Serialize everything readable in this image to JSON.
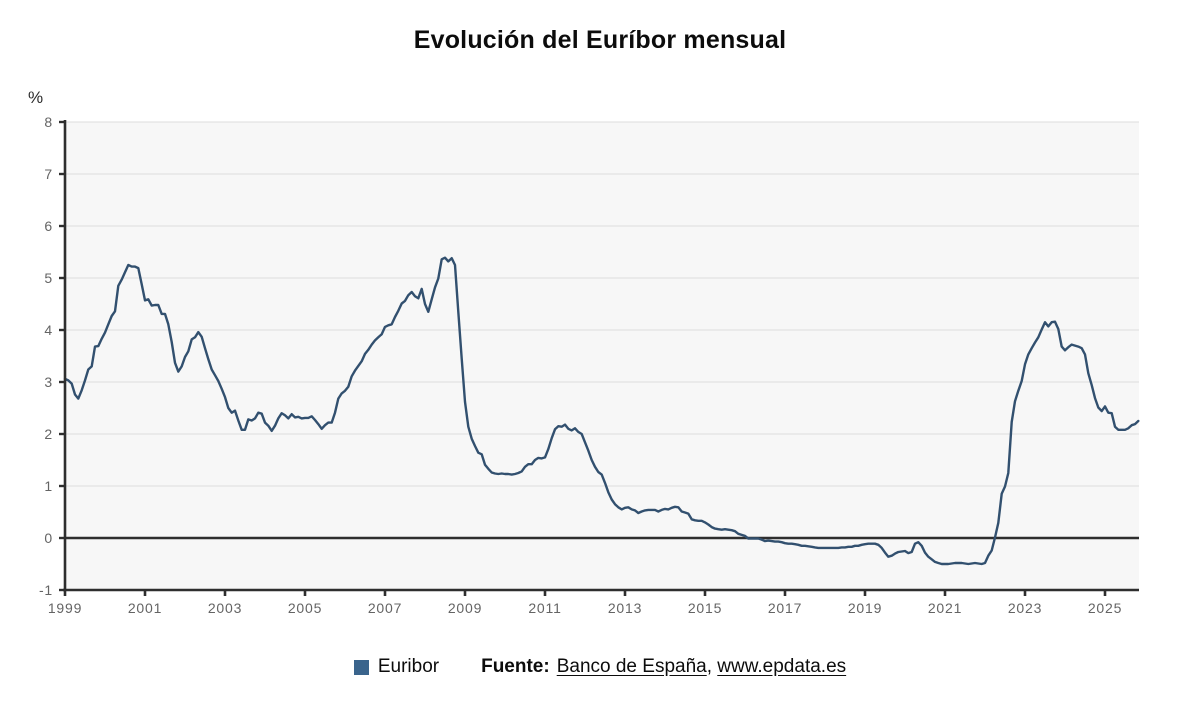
{
  "header": {
    "title": "Evolución del Euríbor mensual"
  },
  "colors": {
    "plot_background": "#f7f7f7",
    "gridline": "#e3e3e3",
    "axis": "#2e2e2e",
    "tick_label": "#646464",
    "line": "#32506f",
    "legend_swatch": "#3a648c"
  },
  "chart_data": {
    "type": "line",
    "title": "Evolución del Euríbor mensual",
    "unit_label": "%",
    "xlabel": "",
    "ylabel": "%",
    "ylim": [
      -1,
      8
    ],
    "y_ticks": [
      -1,
      0,
      1,
      2,
      3,
      4,
      5,
      6,
      7,
      8
    ],
    "x_tick_labels": [
      "1999",
      "2001",
      "2003",
      "2005",
      "2007",
      "2009",
      "2011",
      "2013",
      "2015",
      "2017",
      "2019",
      "2021",
      "2023",
      "2025"
    ],
    "x_years_per_tick": 2,
    "grid": true,
    "zero_line": true,
    "legend_position": "bottom",
    "x_range": {
      "start_year": 1999,
      "start_month": 1,
      "end_year": 2025,
      "end_month": 11
    },
    "series": [
      {
        "name": "Euribor",
        "color": "#32506f",
        "monthly_values": [
          3.06,
          3.03,
          2.97,
          2.76,
          2.68,
          2.84,
          3.03,
          3.24,
          3.3,
          3.68,
          3.69,
          3.83,
          3.95,
          4.11,
          4.27,
          4.36,
          4.85,
          4.97,
          5.11,
          5.25,
          5.22,
          5.22,
          5.19,
          4.88,
          4.57,
          4.59,
          4.47,
          4.48,
          4.48,
          4.31,
          4.31,
          4.11,
          3.77,
          3.37,
          3.2,
          3.3,
          3.48,
          3.59,
          3.82,
          3.86,
          3.96,
          3.87,
          3.65,
          3.44,
          3.24,
          3.13,
          3.02,
          2.87,
          2.71,
          2.5,
          2.41,
          2.45,
          2.26,
          2.08,
          2.08,
          2.28,
          2.26,
          2.3,
          2.41,
          2.39,
          2.22,
          2.16,
          2.06,
          2.16,
          2.3,
          2.4,
          2.36,
          2.3,
          2.38,
          2.32,
          2.33,
          2.3,
          2.31,
          2.31,
          2.34,
          2.27,
          2.19,
          2.1,
          2.17,
          2.22,
          2.22,
          2.41,
          2.68,
          2.78,
          2.83,
          2.91,
          3.11,
          3.22,
          3.31,
          3.4,
          3.54,
          3.62,
          3.72,
          3.8,
          3.86,
          3.92,
          4.06,
          4.09,
          4.11,
          4.25,
          4.37,
          4.51,
          4.56,
          4.67,
          4.73,
          4.65,
          4.61,
          4.79,
          4.5,
          4.35,
          4.59,
          4.82,
          4.99,
          5.36,
          5.39,
          5.32,
          5.38,
          5.25,
          4.35,
          3.45,
          2.62,
          2.14,
          1.91,
          1.77,
          1.64,
          1.61,
          1.41,
          1.33,
          1.26,
          1.24,
          1.23,
          1.24,
          1.23,
          1.23,
          1.22,
          1.23,
          1.25,
          1.28,
          1.37,
          1.42,
          1.42,
          1.5,
          1.54,
          1.53,
          1.55,
          1.71,
          1.92,
          2.09,
          2.15,
          2.14,
          2.18,
          2.1,
          2.07,
          2.11,
          2.04,
          2.0,
          1.84,
          1.68,
          1.5,
          1.37,
          1.27,
          1.22,
          1.06,
          0.88,
          0.74,
          0.65,
          0.59,
          0.55,
          0.58,
          0.59,
          0.55,
          0.53,
          0.48,
          0.51,
          0.53,
          0.54,
          0.54,
          0.54,
          0.51,
          0.54,
          0.56,
          0.55,
          0.58,
          0.6,
          0.59,
          0.51,
          0.49,
          0.47,
          0.36,
          0.34,
          0.33,
          0.33,
          0.3,
          0.26,
          0.21,
          0.18,
          0.17,
          0.16,
          0.17,
          0.16,
          0.15,
          0.13,
          0.08,
          0.06,
          0.04,
          -0.01,
          -0.01,
          -0.01,
          -0.01,
          -0.03,
          -0.06,
          -0.05,
          -0.06,
          -0.07,
          -0.07,
          -0.08,
          -0.1,
          -0.11,
          -0.11,
          -0.12,
          -0.13,
          -0.15,
          -0.15,
          -0.16,
          -0.17,
          -0.18,
          -0.19,
          -0.19,
          -0.19,
          -0.19,
          -0.19,
          -0.19,
          -0.19,
          -0.18,
          -0.18,
          -0.17,
          -0.17,
          -0.15,
          -0.15,
          -0.13,
          -0.12,
          -0.11,
          -0.11,
          -0.11,
          -0.13,
          -0.19,
          -0.28,
          -0.36,
          -0.34,
          -0.3,
          -0.27,
          -0.26,
          -0.25,
          -0.29,
          -0.27,
          -0.11,
          -0.08,
          -0.15,
          -0.28,
          -0.36,
          -0.41,
          -0.46,
          -0.48,
          -0.5,
          -0.5,
          -0.5,
          -0.49,
          -0.48,
          -0.48,
          -0.48,
          -0.49,
          -0.5,
          -0.49,
          -0.48,
          -0.49,
          -0.5,
          -0.48,
          -0.34,
          -0.24,
          0.01,
          0.29,
          0.85,
          0.99,
          1.25,
          2.23,
          2.63,
          2.83,
          3.02,
          3.34,
          3.53,
          3.65,
          3.76,
          3.86,
          4.01,
          4.15,
          4.07,
          4.15,
          4.16,
          4.02,
          3.68,
          3.61,
          3.67,
          3.72,
          3.7,
          3.68,
          3.65,
          3.53,
          3.17,
          2.94,
          2.69,
          2.51,
          2.44,
          2.53,
          2.41,
          2.4,
          2.14,
          2.08,
          2.08,
          2.08,
          2.11,
          2.17,
          2.19,
          2.25
        ]
      }
    ]
  },
  "footer": {
    "legend_label": "Euribor",
    "source_label": "Fuente:",
    "source_links": [
      {
        "text": "Banco de España"
      },
      {
        "text": "www.epdata.es"
      }
    ],
    "separator": ", "
  }
}
